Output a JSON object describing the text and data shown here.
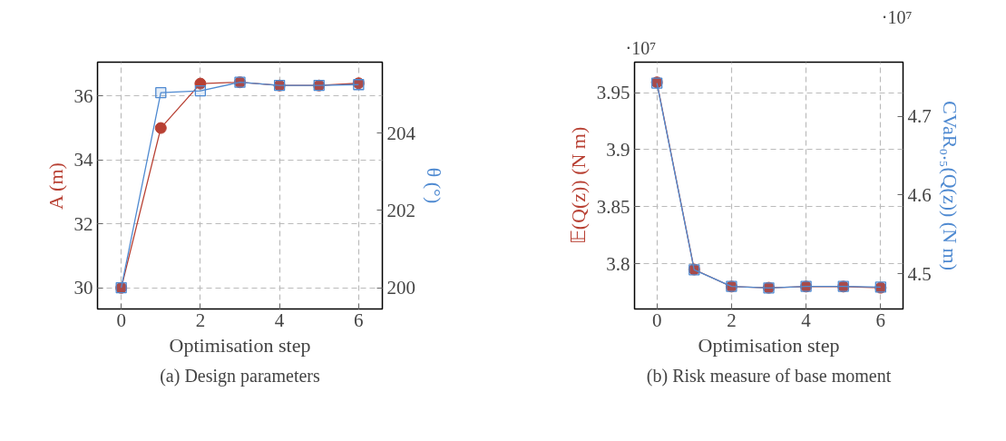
{
  "chart_data": [
    {
      "type": "line",
      "title": "(a) Design parameters",
      "xlabel": "Optimisation step",
      "x": [
        0,
        1,
        2,
        3,
        4,
        5,
        6
      ],
      "xlim": [
        -0.6,
        6.6
      ],
      "xticks": [
        0,
        2,
        4,
        6
      ],
      "ylim": [
        29.34,
        37.06
      ],
      "yticks": [
        30,
        32,
        34,
        36
      ],
      "y2lim": [
        199.45,
        205.83
      ],
      "y2ticks": [
        200,
        202,
        204
      ],
      "grid": true,
      "series": [
        {
          "name": "A (m)",
          "color": "#b84033",
          "marker": "circle",
          "values": [
            30,
            35.0,
            36.39,
            36.43,
            36.33,
            36.33,
            36.4
          ]
        },
        {
          "name": "θ (°)",
          "color": "#4f8ad1",
          "marker": "square",
          "axis": "y2",
          "values": [
            200,
            205.04,
            205.09,
            205.31,
            205.23,
            205.23,
            205.25
          ]
        }
      ]
    },
    {
      "type": "line",
      "title": "(b) Risk measure of base moment",
      "xlabel": "Optimisation step",
      "x": [
        0,
        1,
        2,
        3,
        4,
        5,
        6
      ],
      "xlim": [
        -0.6,
        6.6
      ],
      "xticks": [
        0,
        2,
        4,
        6
      ],
      "ylim": [
        3.7604,
        3.9767
      ],
      "yticks": [
        3.8,
        3.85,
        3.9,
        3.95
      ],
      "y2lim": [
        4.4553,
        4.7686
      ],
      "y2ticks": [
        4.5,
        4.6,
        4.7
      ],
      "grid": true,
      "annotations": [
        "·10⁷",
        "·10⁷"
      ],
      "series": [
        {
          "name": "𝔼(Q(z)) (N m)",
          "color": "#b84033",
          "marker": "circle",
          "values": [
            3.959,
            3.795,
            3.78,
            3.779,
            3.78,
            3.78,
            3.779
          ]
        },
        {
          "name": "CVaR₀.₅(Q(z)) (N m)",
          "color": "#4f8ad1",
          "marker": "square",
          "axis": "y2",
          "values": [
            4.742,
            4.505,
            4.484,
            4.482,
            4.484,
            4.484,
            4.483
          ]
        }
      ]
    }
  ]
}
